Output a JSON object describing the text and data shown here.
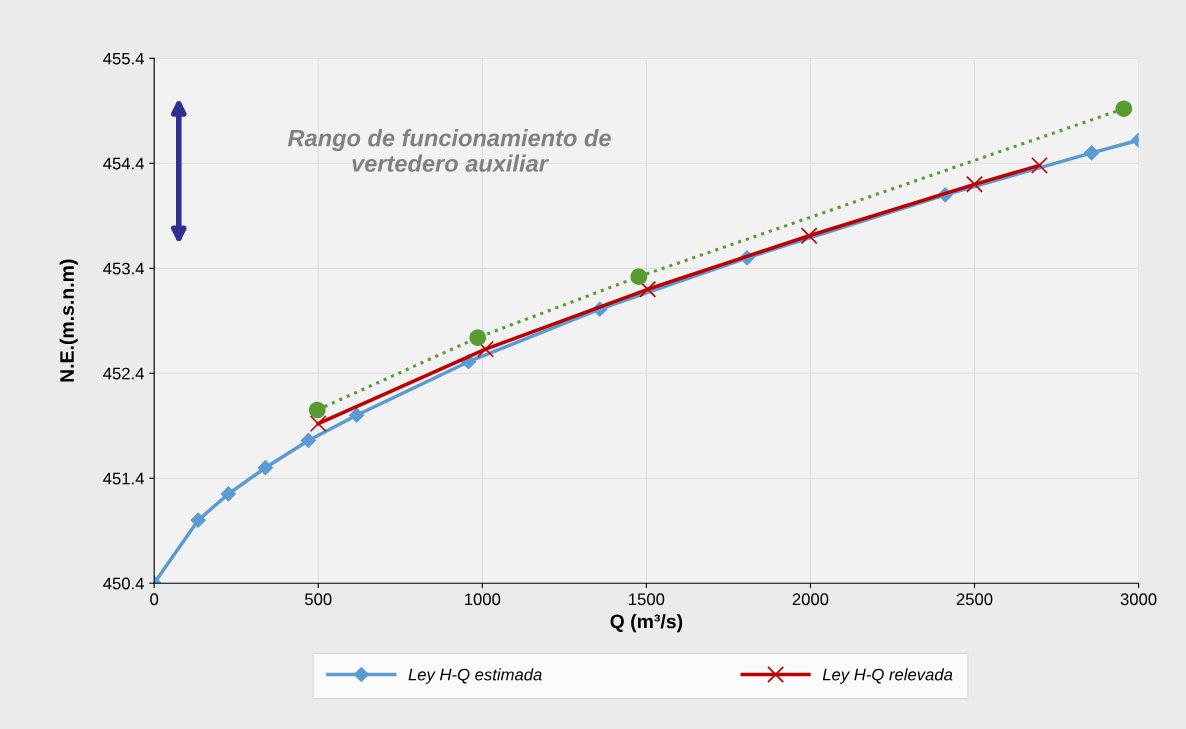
{
  "chart_data": {
    "type": "line",
    "xlabel": "Q (m³/s)",
    "ylabel": "N.E.(m.s.n.m)",
    "xlim": [
      0,
      3000
    ],
    "xticks": [
      0,
      500,
      1000,
      1500,
      2000,
      2500,
      3000
    ],
    "ylim": [
      450.4,
      455.4
    ],
    "yticks": [
      450.4,
      451.4,
      452.4,
      453.4,
      454.4,
      455.4
    ],
    "grid": true,
    "legend": "bottom",
    "annotations": [
      "Rango de funcionamiento de\nvertedero auxiliar"
    ],
    "series": [
      {
        "name": "Ley H-Q estimada",
        "color": "#5b9bd5",
        "marker": "diamond",
        "line_style": "solid",
        "x": [
          0,
          134,
          226,
          339,
          470,
          617,
          958,
          1358,
          1807,
          2411,
          2857,
          3000
        ],
        "values": [
          450.4,
          451.0,
          451.25,
          451.5,
          451.76,
          452.0,
          452.51,
          453.01,
          453.5,
          454.1,
          454.5,
          454.62
        ]
      },
      {
        "name": "Ley H-Q relevada",
        "color": "#c00000",
        "marker": "cross",
        "line_style": "solid",
        "x": [
          500,
          1010,
          1504,
          1996,
          2500,
          2698
        ],
        "values": [
          451.92,
          452.63,
          453.2,
          453.71,
          454.2,
          454.38
        ]
      },
      {
        "color": "#5a9a32",
        "marker": "circle",
        "line_style": "dotted",
        "x": [
          497,
          986,
          1477,
          2955
        ],
        "values": [
          452.05,
          452.74,
          453.32,
          454.92
        ]
      }
    ]
  }
}
